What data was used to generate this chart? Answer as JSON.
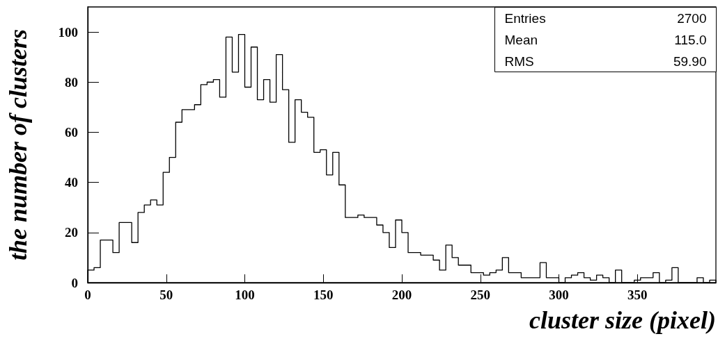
{
  "chart_data": {
    "type": "histogram",
    "xlabel": "cluster size (pixel)",
    "ylabel": "the number of clusters",
    "bins": [
      0,
      4,
      8,
      12,
      16,
      20,
      24,
      28,
      32,
      36,
      40,
      44,
      48,
      52,
      56,
      60,
      64,
      68,
      72,
      76,
      80,
      84,
      88,
      92,
      96,
      100,
      104,
      108,
      112,
      116,
      120,
      124,
      128,
      132,
      136,
      140,
      144,
      148,
      152,
      156,
      160,
      164,
      168,
      172,
      176,
      180,
      184,
      188,
      192,
      196,
      200,
      204,
      208,
      212,
      216,
      220,
      224,
      228,
      232,
      236,
      240,
      244,
      248,
      252,
      256,
      260,
      264,
      268,
      272,
      276,
      280,
      284,
      288,
      292,
      296,
      300,
      304,
      308,
      312,
      316,
      320,
      324,
      328,
      332,
      336,
      340,
      344,
      348,
      352,
      356,
      360,
      364,
      368,
      372,
      376,
      380,
      384,
      388,
      392,
      396,
      400
    ],
    "values": [
      5,
      6,
      17,
      17,
      12,
      24,
      24,
      16,
      28,
      31,
      33,
      31,
      44,
      50,
      64,
      69,
      69,
      71,
      79,
      80,
      81,
      74,
      98,
      84,
      99,
      78,
      94,
      73,
      81,
      72,
      91,
      77,
      56,
      73,
      68,
      66,
      52,
      53,
      43,
      52,
      39,
      26,
      26,
      27,
      26,
      26,
      23,
      20,
      14,
      25,
      20,
      12,
      12,
      11,
      11,
      9,
      5,
      15,
      10,
      7,
      7,
      4,
      4,
      3,
      4,
      5,
      10,
      4,
      4,
      2,
      2,
      2,
      8,
      2,
      2,
      0,
      2,
      3,
      4,
      2,
      1,
      3,
      2,
      0,
      5,
      0,
      0,
      1,
      2,
      2,
      4,
      0,
      1,
      6,
      0,
      0,
      0,
      2,
      0,
      1
    ],
    "color": "#000000",
    "xlim": [
      0,
      400
    ],
    "xticks": [
      0,
      50,
      100,
      150,
      200,
      250,
      300,
      350
    ],
    "ylim": [
      0,
      110
    ],
    "yticks": [
      0,
      20,
      40,
      60,
      80,
      100
    ],
    "grid": false,
    "annotations": [
      "Entries",
      "2700",
      "Mean",
      "115.0",
      "RMS",
      "59.90"
    ]
  }
}
